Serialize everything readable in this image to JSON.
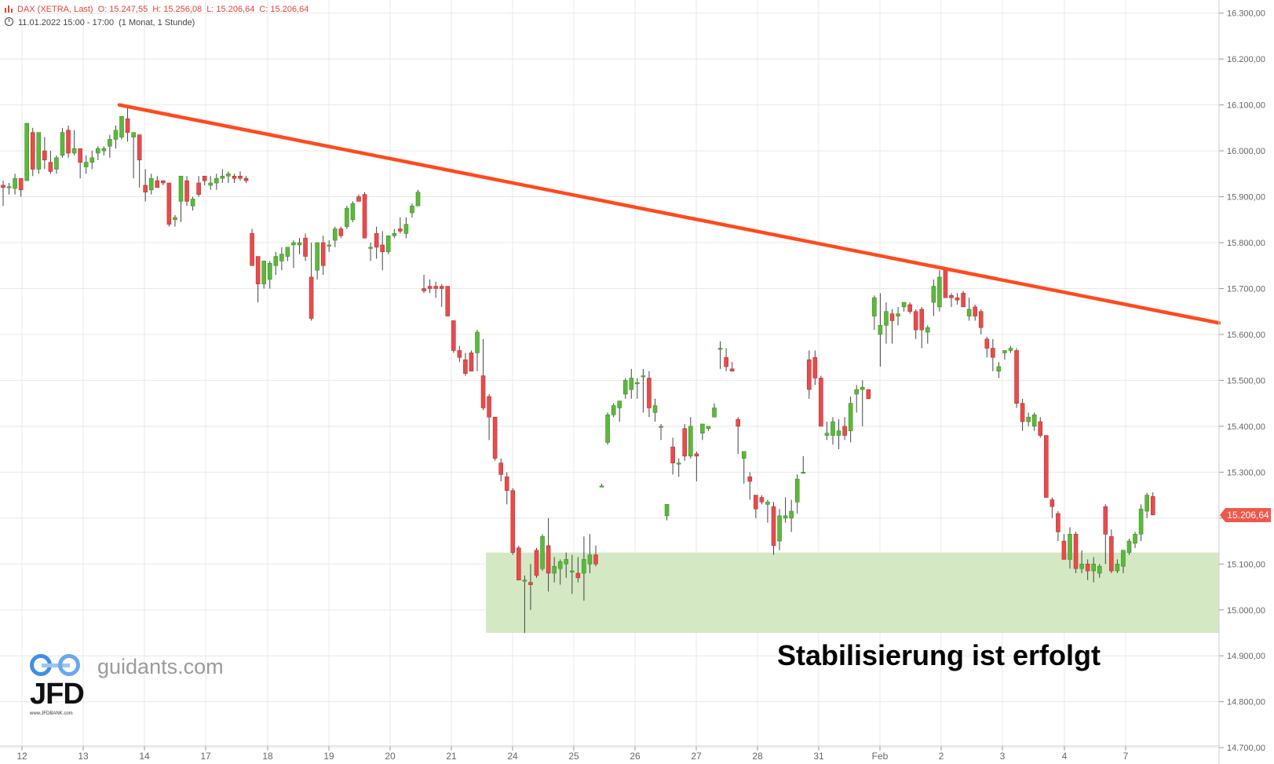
{
  "header": {
    "symbol": "DAX (XETRA, Last)",
    "open": "O: 15.247,55",
    "high": "H: 15.256,08",
    "low": "L: 15.206,64",
    "close": "C: 15.206,64",
    "date_range": "11.01.2022 15:00 - 17:00",
    "period": "(1 Monat, 1 Stunde)"
  },
  "watermark": {
    "brand": "JFD",
    "brand_small": "www.JFDBANK.com",
    "site": "guidants.com"
  },
  "annotation": "Stabilisierung ist erfolgt",
  "last_price_label": "15.206,64",
  "colors": {
    "up": "#5cb83c",
    "down": "#e94b4b",
    "trendline": "#ff4a1c",
    "zone": "#d4e8c4",
    "grid": "#e8e8e8",
    "axis_text": "#666666",
    "price_badge": "#f0574a"
  },
  "chart_data": {
    "type": "candlestick",
    "y_range": [
      14690,
      16320
    ],
    "y_ticks": [
      "16.300,00",
      "16.200,00",
      "16.100,00",
      "16.000,00",
      "15.900,00",
      "15.800,00",
      "15.700,00",
      "15.600,00",
      "15.500,00",
      "15.400,00",
      "15.300,00",
      "15.200,00",
      "15.100,00",
      "15.000,00",
      "14.900,00",
      "14.800,00",
      "14.700,00"
    ],
    "y_tick_values": [
      16300,
      16200,
      16100,
      16000,
      15900,
      15800,
      15700,
      15600,
      15500,
      15400,
      15300,
      15200,
      15100,
      15000,
      14900,
      14800,
      14700
    ],
    "x_labels": [
      "12",
      "13",
      "14",
      "17",
      "18",
      "19",
      "20",
      "21",
      "24",
      "25",
      "26",
      "27",
      "28",
      "31",
      "Feb",
      "2",
      "3",
      "4",
      "7"
    ],
    "trendline": {
      "start": {
        "candle": 20,
        "price": 16100
      },
      "end": {
        "price": 15625
      }
    },
    "support_zone": {
      "from_candle": 82,
      "low": 14950,
      "high": 15125
    },
    "last_price": 15206.64,
    "candles": [
      [
        15925,
        15935,
        15880,
        15920
      ],
      [
        15920,
        15930,
        15905,
        15922
      ],
      [
        15918,
        15950,
        15905,
        15940
      ],
      [
        15940,
        15940,
        15900,
        15915
      ],
      [
        15935,
        16060,
        15950,
        16060
      ],
      [
        16040,
        16050,
        15945,
        15960
      ],
      [
        15960,
        16040,
        15950,
        16040
      ],
      [
        16000,
        16030,
        15960,
        15980
      ],
      [
        15975,
        16000,
        15950,
        15955
      ],
      [
        15960,
        15990,
        15950,
        15985
      ],
      [
        15990,
        16050,
        15985,
        16040
      ],
      [
        16045,
        16055,
        15985,
        15995
      ],
      [
        15995,
        16045,
        15990,
        16005
      ],
      [
        16005,
        16005,
        15940,
        15975
      ],
      [
        15965,
        15990,
        15950,
        15975
      ],
      [
        15975,
        16000,
        15960,
        15985
      ],
      [
        15995,
        16010,
        15980,
        16005
      ],
      [
        16000,
        16010,
        15990,
        16005
      ],
      [
        16010,
        16035,
        15985,
        16025
      ],
      [
        16025,
        16055,
        16005,
        16045
      ],
      [
        16030,
        16075,
        16025,
        16075
      ],
      [
        16070,
        16100,
        16020,
        16040
      ],
      [
        16030,
        16040,
        15940,
        16040
      ],
      [
        16035,
        16035,
        15920,
        15980
      ],
      [
        15925,
        15960,
        15890,
        15910
      ],
      [
        15915,
        15950,
        15905,
        15940
      ],
      [
        15935,
        15945,
        15920,
        15920
      ],
      [
        15935,
        15935,
        15925,
        15930
      ],
      [
        15930,
        15930,
        15835,
        15840
      ],
      [
        15850,
        15860,
        15835,
        15855
      ],
      [
        15890,
        15945,
        15845,
        15945
      ],
      [
        15935,
        15945,
        15880,
        15890
      ],
      [
        15880,
        15900,
        15870,
        15895
      ],
      [
        15930,
        15945,
        15900,
        15905
      ],
      [
        15945,
        15945,
        15925,
        15935
      ],
      [
        15925,
        15945,
        15915,
        15930
      ],
      [
        15930,
        15950,
        15915,
        15940
      ],
      [
        15940,
        15960,
        15930,
        15945
      ],
      [
        15945,
        15955,
        15930,
        15950
      ],
      [
        15945,
        15950,
        15930,
        15940
      ],
      [
        15945,
        15955,
        15935,
        15940
      ],
      [
        15940,
        15945,
        15930,
        15935
      ],
      [
        15820,
        15830,
        15750,
        15750
      ],
      [
        15770,
        15770,
        15670,
        15710
      ],
      [
        15710,
        15760,
        15700,
        15760
      ],
      [
        15720,
        15760,
        15700,
        15755
      ],
      [
        15750,
        15780,
        15730,
        15770
      ],
      [
        15760,
        15790,
        15740,
        15775
      ],
      [
        15770,
        15790,
        15760,
        15790
      ],
      [
        15795,
        15805,
        15745,
        15800
      ],
      [
        15795,
        15810,
        15775,
        15800
      ],
      [
        15810,
        15820,
        15760,
        15770
      ],
      [
        15725,
        15800,
        15630,
        15635
      ],
      [
        15740,
        15800,
        15720,
        15800
      ],
      [
        15800,
        15815,
        15730,
        15750
      ],
      [
        15795,
        15805,
        15780,
        15795
      ],
      [
        15805,
        15835,
        15790,
        15830
      ],
      [
        15830,
        15835,
        15810,
        15815
      ],
      [
        15835,
        15880,
        15830,
        15875
      ],
      [
        15850,
        15890,
        15845,
        15885
      ],
      [
        15900,
        15905,
        15890,
        15890
      ],
      [
        15905,
        15910,
        15810,
        15810
      ],
      [
        15790,
        15800,
        15760,
        15790
      ],
      [
        15820,
        15835,
        15765,
        15790
      ],
      [
        15795,
        15825,
        15740,
        15780
      ],
      [
        15780,
        15815,
        15775,
        15815
      ],
      [
        15815,
        15830,
        15810,
        15820
      ],
      [
        15830,
        15855,
        15820,
        15825
      ],
      [
        15820,
        15855,
        15810,
        15840
      ],
      [
        15865,
        15885,
        15855,
        15880
      ],
      [
        15880,
        15915,
        15880,
        15910
      ],
      [
        15700,
        15730,
        15690,
        15695
      ],
      [
        15705,
        15720,
        15690,
        15700
      ],
      [
        15705,
        15715,
        15680,
        15700
      ],
      [
        15705,
        15710,
        15660,
        15700
      ],
      [
        15705,
        15705,
        15640,
        15640
      ],
      [
        15630,
        15630,
        15560,
        15565
      ],
      [
        15565,
        15575,
        15540,
        15550
      ],
      [
        15545,
        15560,
        15510,
        15515
      ],
      [
        15560,
        15565,
        15520,
        15520
      ],
      [
        15560,
        15610,
        15520,
        15605
      ],
      [
        15510,
        15590,
        15435,
        15440
      ],
      [
        15465,
        15470,
        15370,
        15420
      ],
      [
        15420,
        15420,
        15325,
        15330
      ],
      [
        15320,
        15330,
        15280,
        15295
      ],
      [
        15290,
        15300,
        15230,
        15260
      ],
      [
        15260,
        15265,
        15120,
        15125
      ],
      [
        15135,
        15140,
        15065,
        15065
      ],
      [
        15065,
        15075,
        14950,
        15065
      ],
      [
        15060,
        15100,
        15000,
        15055
      ],
      [
        15130,
        15135,
        15070,
        15075
      ],
      [
        15090,
        15165,
        15085,
        15160
      ],
      [
        15140,
        15200,
        15040,
        15080
      ],
      [
        15080,
        15115,
        15060,
        15095
      ],
      [
        15090,
        15110,
        15055,
        15105
      ],
      [
        15100,
        15125,
        15070,
        15110
      ],
      [
        15085,
        15120,
        15035,
        15085
      ],
      [
        15080,
        15115,
        15060,
        15070
      ],
      [
        15080,
        15160,
        15020,
        15110
      ],
      [
        15100,
        15165,
        15080,
        15120
      ],
      [
        15120,
        15140,
        15095,
        15100
      ],
      [
        15270,
        15275,
        15270,
        15270
      ],
      [
        15365,
        15430,
        15360,
        15425
      ],
      [
        15425,
        15450,
        15420,
        15445
      ],
      [
        15440,
        15455,
        15410,
        15455
      ],
      [
        15470,
        15505,
        15460,
        15500
      ],
      [
        15480,
        15525,
        15460,
        15505
      ],
      [
        15495,
        15505,
        15460,
        15495
      ],
      [
        15510,
        15525,
        15430,
        15510
      ],
      [
        15505,
        15520,
        15420,
        15440
      ],
      [
        15430,
        15460,
        15410,
        15445
      ],
      [
        15400,
        15405,
        15370,
        15400
      ],
      [
        15205,
        15230,
        15195,
        15230
      ],
      [
        15355,
        15375,
        15295,
        15320
      ],
      [
        15320,
        15330,
        15290,
        15320
      ],
      [
        15395,
        15405,
        15325,
        15335
      ],
      [
        15335,
        15420,
        15330,
        15400
      ],
      [
        15340,
        15345,
        15280,
        15335
      ],
      [
        15385,
        15405,
        15370,
        15405
      ],
      [
        15395,
        15400,
        15390,
        15400
      ],
      [
        15420,
        15450,
        15430,
        15440
      ],
      [
        15570,
        15585,
        15525,
        15570
      ],
      [
        15550,
        15570,
        15520,
        15530
      ],
      [
        15525,
        15540,
        15520,
        15520
      ],
      [
        15415,
        15420,
        15340,
        15400
      ],
      [
        15330,
        15340,
        15275,
        15345
      ],
      [
        15290,
        15300,
        15240,
        15280
      ],
      [
        15250,
        15250,
        15200,
        15220
      ],
      [
        15245,
        15250,
        15230,
        15235
      ],
      [
        15230,
        15240,
        15190,
        15235
      ],
      [
        15225,
        15235,
        15120,
        15140
      ],
      [
        15150,
        15220,
        15130,
        15205
      ],
      [
        15200,
        15245,
        15190,
        15205
      ],
      [
        15200,
        15240,
        15170,
        15215
      ],
      [
        15235,
        15295,
        15210,
        15285
      ],
      [
        15300,
        15335,
        15300,
        15300
      ],
      [
        15545,
        15565,
        15460,
        15480
      ],
      [
        15550,
        15565,
        15490,
        15505
      ],
      [
        15505,
        15510,
        15400,
        15400
      ],
      [
        15380,
        15410,
        15370,
        15385
      ],
      [
        15380,
        15420,
        15360,
        15410
      ],
      [
        15380,
        15415,
        15350,
        15390
      ],
      [
        15400,
        15420,
        15370,
        15380
      ],
      [
        15390,
        15465,
        15365,
        15450
      ],
      [
        15470,
        15490,
        15430,
        15480
      ],
      [
        15480,
        15500,
        15400,
        15485
      ],
      [
        15480,
        15475,
        15460,
        15460
      ],
      [
        15640,
        15685,
        15610,
        15680
      ],
      [
        15600,
        15690,
        15530,
        15620
      ],
      [
        15620,
        15670,
        15580,
        15650
      ],
      [
        15645,
        15655,
        15580,
        15630
      ],
      [
        15640,
        15660,
        15620,
        15645
      ],
      [
        15660,
        15670,
        15650,
        15670
      ],
      [
        15665,
        15670,
        15645,
        15650
      ],
      [
        15650,
        15655,
        15590,
        15610
      ],
      [
        15655,
        15660,
        15570,
        15610
      ],
      [
        15605,
        15620,
        15580,
        15615
      ],
      [
        15670,
        15720,
        15640,
        15705
      ],
      [
        15660,
        15740,
        15650,
        15725
      ],
      [
        15740,
        15740,
        15680,
        15680
      ],
      [
        15685,
        15690,
        15660,
        15680
      ],
      [
        15680,
        15690,
        15665,
        15675
      ],
      [
        15690,
        15695,
        15660,
        15660
      ],
      [
        15640,
        15680,
        15630,
        15655
      ],
      [
        15660,
        15665,
        15630,
        15640
      ],
      [
        15650,
        15655,
        15600,
        15615
      ],
      [
        15590,
        15595,
        15550,
        15570
      ],
      [
        15570,
        15590,
        15520,
        15550
      ],
      [
        15520,
        15540,
        15505,
        15530
      ],
      [
        15560,
        15565,
        15545,
        15565
      ],
      [
        15565,
        15575,
        15560,
        15570
      ],
      [
        15565,
        15570,
        15440,
        15450
      ],
      [
        15450,
        15460,
        15390,
        15410
      ],
      [
        15410,
        15430,
        15400,
        15420
      ],
      [
        15400,
        15430,
        15390,
        15425
      ],
      [
        15410,
        15420,
        15375,
        15380
      ],
      [
        15380,
        15380,
        15245,
        15245
      ],
      [
        15240,
        15245,
        15200,
        15225
      ],
      [
        15210,
        15215,
        15150,
        15170
      ],
      [
        15150,
        15165,
        15110,
        15110
      ],
      [
        15110,
        15180,
        15090,
        15165
      ],
      [
        15165,
        15170,
        15080,
        15090
      ],
      [
        15090,
        15130,
        15080,
        15100
      ],
      [
        15100,
        15110,
        15065,
        15085
      ],
      [
        15085,
        15115,
        15060,
        15100
      ],
      [
        15080,
        15100,
        15070,
        15095
      ],
      [
        15225,
        15230,
        15100,
        15165
      ],
      [
        15160,
        15175,
        15080,
        15085
      ],
      [
        15085,
        15110,
        15080,
        15100
      ],
      [
        15095,
        15130,
        15080,
        15130
      ],
      [
        15125,
        15155,
        15120,
        15150
      ],
      [
        15145,
        15170,
        15135,
        15165
      ],
      [
        15165,
        15230,
        15150,
        15220
      ],
      [
        15215,
        15255,
        15200,
        15250
      ],
      [
        15247,
        15256,
        15206,
        15207
      ]
    ]
  }
}
